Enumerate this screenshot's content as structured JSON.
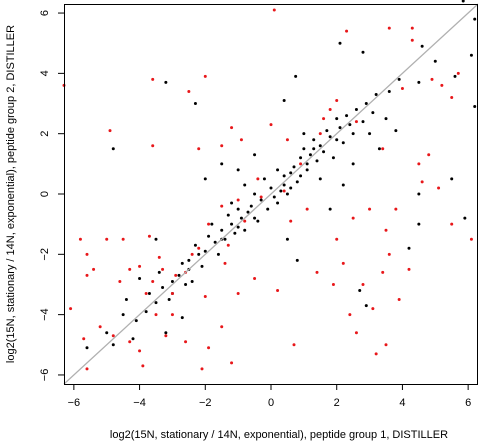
{
  "chart_data": {
    "type": "scatter",
    "xlabel": "log2(15N, stationary / 14N, exponential), peptide group 1, DISTILLER",
    "ylabel": "log2(15N, stationary / 14N, exponential), peptide group 2, DISTILLER",
    "xlim": [
      -6.3,
      6.3
    ],
    "ylim": [
      -6.3,
      6.3
    ],
    "x_ticks": [
      -6,
      -4,
      -2,
      0,
      2,
      4,
      6
    ],
    "y_ticks": [
      -6,
      -4,
      -2,
      0,
      2,
      4,
      6
    ],
    "x_tick_labels": [
      "−6",
      "−4",
      "−2",
      "0",
      "2",
      "4",
      "6"
    ],
    "y_tick_labels": [
      "−6",
      "−4",
      "−2",
      "0",
      "2",
      "4",
      "6"
    ],
    "grid": false,
    "reference_line": {
      "slope": 1,
      "intercept": 0,
      "color": "#b0b0b0"
    },
    "colors": {
      "black_series": "#000000",
      "red_series": "#e8171a"
    },
    "series": [
      {
        "color": "#000000",
        "points": [
          [
            5.85,
            6.4
          ],
          [
            6.2,
            5.8
          ],
          [
            6.1,
            4.6
          ],
          [
            5.6,
            3.9
          ],
          [
            4.6,
            4.9
          ],
          [
            2.8,
            4.7
          ],
          [
            6.2,
            2.9
          ],
          [
            2.1,
            5.0
          ],
          [
            0.75,
            3.9
          ],
          [
            0.4,
            3.1
          ],
          [
            -3.2,
            3.7
          ],
          [
            -2.3,
            3.0
          ],
          [
            -4.8,
            1.5
          ],
          [
            5.5,
            0.5
          ],
          [
            4.5,
            0.0
          ],
          [
            5.9,
            -0.8
          ],
          [
            4.5,
            -1.0
          ],
          [
            4.2,
            -1.8
          ],
          [
            2.9,
            -3.7
          ],
          [
            2.7,
            -3.2
          ],
          [
            0.8,
            -2.2
          ],
          [
            -1.5,
            -1.5
          ],
          [
            -2.5,
            -2.5
          ],
          [
            -3.0,
            -3.3
          ],
          [
            -4.4,
            -3.5
          ],
          [
            -4.5,
            -4.0
          ],
          [
            -4.2,
            -4.8
          ],
          [
            -5.6,
            -5.1
          ],
          [
            -2.7,
            -4.1
          ],
          [
            -3.2,
            -4.6
          ],
          [
            -2.0,
            0.5
          ],
          [
            -1.5,
            1.0
          ],
          [
            0.5,
            -1.5
          ],
          [
            1.5,
            0.5
          ],
          [
            2.5,
            1.0
          ],
          [
            3.0,
            2.0
          ],
          [
            3.5,
            2.5
          ],
          [
            -0.8,
            0.3
          ],
          [
            0.2,
            0.8
          ],
          [
            1.0,
            2.0
          ],
          [
            2.0,
            2.5
          ],
          [
            -1.0,
            -0.5
          ],
          [
            -1.2,
            -1.0
          ],
          [
            -1.5,
            -1.2
          ],
          [
            -0.5,
            -0.8
          ],
          [
            0.0,
            0.2
          ],
          [
            0.4,
            0.3
          ],
          [
            0.6,
            0.7
          ],
          [
            0.9,
            1.2
          ],
          [
            1.1,
            1.0
          ],
          [
            1.3,
            1.5
          ],
          [
            1.5,
            1.6
          ],
          [
            1.8,
            1.9
          ],
          [
            2.1,
            2.2
          ],
          [
            2.4,
            2.3
          ],
          [
            2.6,
            2.8
          ],
          [
            2.9,
            3.0
          ],
          [
            3.1,
            2.7
          ],
          [
            -0.3,
            -0.2
          ],
          [
            -0.6,
            -0.4
          ],
          [
            -0.9,
            -0.8
          ],
          [
            -1.1,
            -1.3
          ],
          [
            -1.4,
            -1.5
          ],
          [
            -1.7,
            -1.6
          ],
          [
            -2.0,
            -1.9
          ],
          [
            -2.2,
            -2.0
          ],
          [
            -2.5,
            -2.2
          ],
          [
            -2.8,
            -2.7
          ],
          [
            -3.0,
            -2.9
          ],
          [
            -3.3,
            -3.1
          ],
          [
            -3.5,
            -3.6
          ],
          [
            -3.8,
            -3.9
          ],
          [
            -4.1,
            -4.2
          ],
          [
            0.1,
            -0.1
          ],
          [
            0.3,
            0.1
          ],
          [
            0.7,
            0.9
          ],
          [
            1.2,
            1.3
          ],
          [
            1.6,
            1.4
          ],
          [
            2.0,
            1.8
          ],
          [
            2.3,
            2.6
          ],
          [
            -0.2,
            0.5
          ],
          [
            -0.4,
            -0.9
          ],
          [
            -0.7,
            -0.6
          ],
          [
            -1.0,
            -1.1
          ],
          [
            -1.3,
            -0.7
          ],
          [
            -1.6,
            -2.0
          ],
          [
            -1.9,
            -1.4
          ],
          [
            -2.1,
            -2.4
          ],
          [
            -2.4,
            -2.9
          ],
          [
            -2.7,
            -2.3
          ],
          [
            -3.1,
            -3.5
          ],
          [
            0.5,
            0.0
          ],
          [
            0.8,
            0.4
          ],
          [
            1.0,
            1.5
          ],
          [
            1.4,
            1.1
          ],
          [
            1.7,
            2.1
          ],
          [
            2.2,
            1.7
          ],
          [
            2.5,
            2.0
          ],
          [
            2.8,
            2.4
          ],
          [
            3.2,
            3.3
          ],
          [
            3.6,
            3.4
          ],
          [
            3.9,
            3.8
          ],
          [
            -0.1,
            -0.5
          ],
          [
            0.2,
            -0.3
          ],
          [
            0.4,
            0.6
          ],
          [
            0.6,
            0.2
          ],
          [
            0.9,
            0.6
          ],
          [
            1.1,
            0.8
          ],
          [
            1.3,
            1.8
          ],
          [
            1.9,
            1.2
          ],
          [
            -0.5,
            0.0
          ],
          [
            -0.8,
            -1.2
          ],
          [
            -1.2,
            -0.3
          ],
          [
            -1.8,
            -1.0
          ],
          [
            -2.3,
            -1.7
          ],
          [
            -2.6,
            -3.0
          ],
          [
            -3.4,
            -2.6
          ],
          [
            -3.7,
            -3.3
          ],
          [
            1.8,
            -0.5
          ],
          [
            2.2,
            0.3
          ],
          [
            -0.5,
            1.3
          ],
          [
            -1.0,
            0.8
          ],
          [
            3.3,
            1.5
          ],
          [
            3.8,
            2.1
          ],
          [
            -3.5,
            -1.5
          ],
          [
            -4.0,
            -2.8
          ],
          [
            4.5,
            3.7
          ],
          [
            5.0,
            4.4
          ],
          [
            -5.0,
            -4.6
          ],
          [
            -4.8,
            -5.0
          ]
        ]
      },
      {
        "color": "#e8171a",
        "points": [
          [
            0.1,
            6.1
          ],
          [
            4.3,
            5.5
          ],
          [
            4.3,
            5.1
          ],
          [
            3.6,
            5.5
          ],
          [
            2.3,
            5.4
          ],
          [
            -6.3,
            3.6
          ],
          [
            -3.6,
            3.8
          ],
          [
            -2.0,
            3.9
          ],
          [
            -2.5,
            3.4
          ],
          [
            4.9,
            3.8
          ],
          [
            5.2,
            3.6
          ],
          [
            5.5,
            3.2
          ],
          [
            5.7,
            4.0
          ],
          [
            4.0,
            3.5
          ],
          [
            -4.9,
            2.1
          ],
          [
            -3.6,
            1.6
          ],
          [
            -2.2,
            1.5
          ],
          [
            -1.5,
            1.6
          ],
          [
            -1.2,
            2.2
          ],
          [
            -0.9,
            1.8
          ],
          [
            0.5,
            1.8
          ],
          [
            1.6,
            2.5
          ],
          [
            0.0,
            2.3
          ],
          [
            4.8,
            1.3
          ],
          [
            4.5,
            1.0
          ],
          [
            3.4,
            1.5
          ],
          [
            5.1,
            0.2
          ],
          [
            4.6,
            0.4
          ],
          [
            3.8,
            -0.5
          ],
          [
            3.0,
            -0.5
          ],
          [
            5.5,
            -1.0
          ],
          [
            6.1,
            -1.5
          ],
          [
            2.5,
            -0.8
          ],
          [
            3.5,
            -1.2
          ],
          [
            2.0,
            -1.5
          ],
          [
            -1.5,
            -0.4
          ],
          [
            -1.0,
            -0.2
          ],
          [
            -0.4,
            0.5
          ],
          [
            0.6,
            -0.9
          ],
          [
            1.1,
            -0.5
          ],
          [
            -6.1,
            -3.8
          ],
          [
            -5.0,
            -1.5
          ],
          [
            -4.5,
            -1.5
          ],
          [
            -3.7,
            -1.4
          ],
          [
            -3.4,
            -2.1
          ],
          [
            -5.8,
            -1.5
          ],
          [
            -5.6,
            -2.0
          ],
          [
            -5.4,
            -2.5
          ],
          [
            -5.6,
            -2.7
          ],
          [
            -4.6,
            -2.9
          ],
          [
            -4.3,
            -2.5
          ],
          [
            -4.0,
            -2.4
          ],
          [
            -3.6,
            -2.9
          ],
          [
            -3.0,
            -3.3
          ],
          [
            -2.6,
            -2.6
          ],
          [
            -2.2,
            -1.8
          ],
          [
            -1.9,
            -1.0
          ],
          [
            -1.3,
            -1.7
          ],
          [
            -0.8,
            -0.9
          ],
          [
            -3.8,
            -3.3
          ],
          [
            -3.5,
            -4.0
          ],
          [
            -3.0,
            -4.0
          ],
          [
            -3.2,
            -4.7
          ],
          [
            -2.6,
            -4.9
          ],
          [
            -2.0,
            -3.4
          ],
          [
            -1.0,
            -3.3
          ],
          [
            -1.5,
            -4.4
          ],
          [
            -1.9,
            -5.1
          ],
          [
            -2.1,
            -5.8
          ],
          [
            -1.2,
            -5.6
          ],
          [
            0.7,
            -5.0
          ],
          [
            0.2,
            -3.2
          ],
          [
            -0.5,
            -2.8
          ],
          [
            -4.3,
            -4.9
          ],
          [
            -4.0,
            -5.2
          ],
          [
            -4.8,
            -4.7
          ],
          [
            -5.2,
            -4.4
          ],
          [
            -5.7,
            -4.8
          ],
          [
            -5.6,
            -5.8
          ],
          [
            -3.9,
            -5.7
          ],
          [
            2.2,
            -2.3
          ],
          [
            2.8,
            -3.0
          ],
          [
            3.1,
            -3.8
          ],
          [
            2.6,
            -4.6
          ],
          [
            3.5,
            -5.0
          ],
          [
            3.2,
            -5.3
          ],
          [
            1.4,
            -2.6
          ],
          [
            1.9,
            -3.0
          ],
          [
            2.4,
            -4.0
          ],
          [
            3.6,
            -2.0
          ],
          [
            3.9,
            -3.5
          ],
          [
            3.4,
            -2.6
          ],
          [
            4.2,
            -2.5
          ],
          [
            0.4,
            0.1
          ],
          [
            0.9,
            1.0
          ],
          [
            1.5,
            2.0
          ],
          [
            2.6,
            2.4
          ],
          [
            -0.3,
            -0.1
          ],
          [
            2.0,
            3.1
          ],
          [
            1.8,
            2.8
          ],
          [
            -1.4,
            -2.3
          ],
          [
            -2.4,
            -2.0
          ],
          [
            -2.9,
            -2.7
          ],
          [
            -3.3,
            -2.5
          ]
        ]
      }
    ]
  }
}
